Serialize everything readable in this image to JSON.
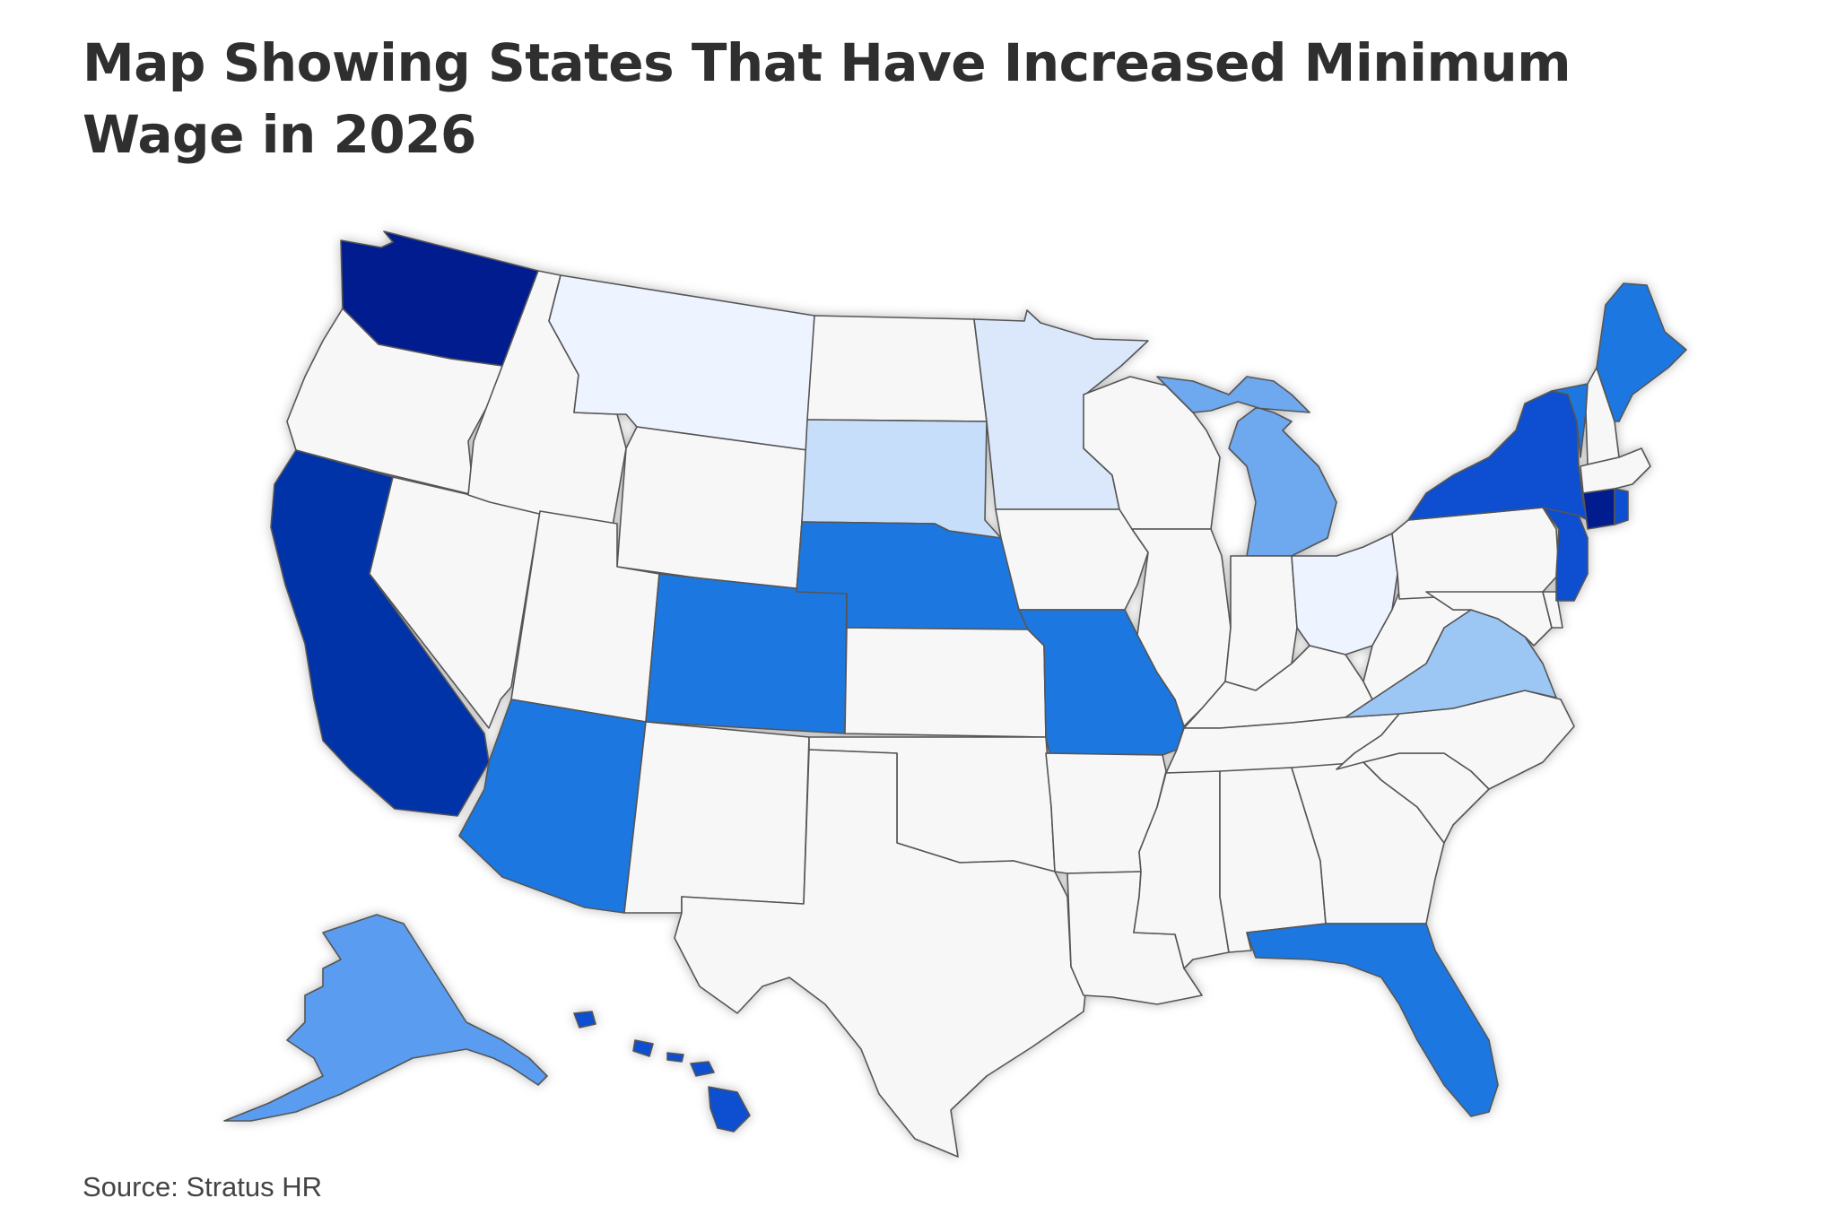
{
  "title": "Map Showing States That Have Increased Minimum Wage in 2026",
  "source": "Source: Stratus HR",
  "colors": {
    "none": "#f7f7f7",
    "very_light": "#eef4ff",
    "light": "#dbe8fb",
    "pale": "#c6defa",
    "sky": "#9cc7f5",
    "mid_light": "#6ea8ee",
    "mid": "#5a9df0",
    "blue": "#1e78e0",
    "strong": "#0b4fd0",
    "dark": "#0030a8",
    "darkest": "#001d8f",
    "border": "#555555"
  }
}
